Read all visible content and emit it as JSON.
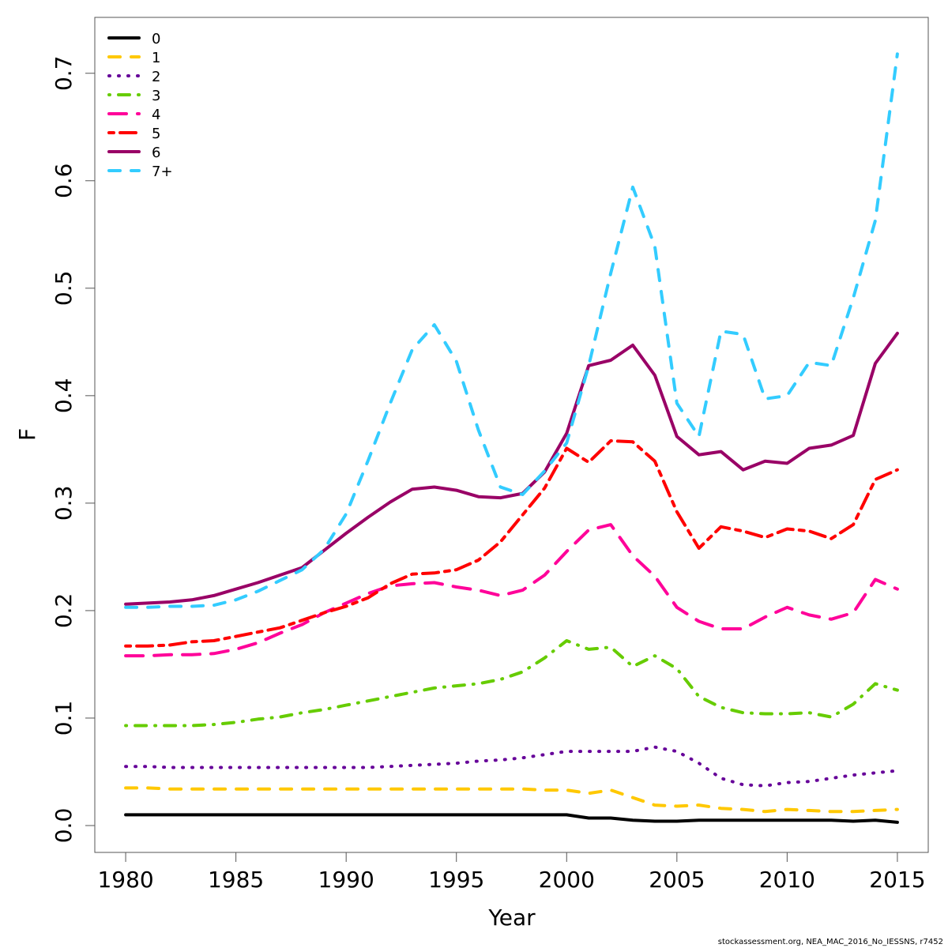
{
  "chart_data": {
    "type": "line",
    "title": "",
    "xlabel": "Year",
    "ylabel": "F",
    "xlim": [
      1978.6,
      2016.4
    ],
    "ylim": [
      -0.025,
      0.752
    ],
    "x_ticks": [
      1980,
      1985,
      1990,
      1995,
      2000,
      2005,
      2010,
      2015
    ],
    "x_tick_labels": [
      "1980",
      "1985",
      "1990",
      "1995",
      "2000",
      "2005",
      "2010",
      "2015"
    ],
    "y_ticks": [
      0.0,
      0.1,
      0.2,
      0.3,
      0.4,
      0.5,
      0.6,
      0.7
    ],
    "y_tick_labels": [
      "0.0",
      "0.1",
      "0.2",
      "0.3",
      "0.4",
      "0.5",
      "0.6",
      "0.7"
    ],
    "grid": false,
    "legend_position": "top-left",
    "x": [
      1980,
      1981,
      1982,
      1983,
      1984,
      1985,
      1986,
      1987,
      1988,
      1989,
      1990,
      1991,
      1992,
      1993,
      1994,
      1995,
      1996,
      1997,
      1998,
      1999,
      2000,
      2001,
      2002,
      2003,
      2004,
      2005,
      2006,
      2007,
      2008,
      2009,
      2010,
      2011,
      2012,
      2013,
      2014,
      2015
    ],
    "series": [
      {
        "name": "0",
        "color": "#000000",
        "dash": "solid",
        "values": [
          0.01,
          0.01,
          0.01,
          0.01,
          0.01,
          0.01,
          0.01,
          0.01,
          0.01,
          0.01,
          0.01,
          0.01,
          0.01,
          0.01,
          0.01,
          0.01,
          0.01,
          0.01,
          0.01,
          0.01,
          0.01,
          0.007,
          0.007,
          0.005,
          0.004,
          0.004,
          0.005,
          0.005,
          0.005,
          0.005,
          0.005,
          0.005,
          0.005,
          0.004,
          0.005,
          0.003
        ]
      },
      {
        "name": "1",
        "color": "#FFC800",
        "dash": "dashed",
        "values": [
          0.035,
          0.035,
          0.034,
          0.034,
          0.034,
          0.034,
          0.034,
          0.034,
          0.034,
          0.034,
          0.034,
          0.034,
          0.034,
          0.034,
          0.034,
          0.034,
          0.034,
          0.034,
          0.034,
          0.033,
          0.033,
          0.03,
          0.033,
          0.026,
          0.019,
          0.018,
          0.019,
          0.016,
          0.015,
          0.013,
          0.015,
          0.014,
          0.013,
          0.013,
          0.014,
          0.015
        ]
      },
      {
        "name": "2",
        "color": "#660099",
        "dash": "dotted",
        "values": [
          0.055,
          0.055,
          0.054,
          0.054,
          0.054,
          0.054,
          0.054,
          0.054,
          0.054,
          0.054,
          0.054,
          0.054,
          0.055,
          0.056,
          0.057,
          0.058,
          0.06,
          0.061,
          0.063,
          0.066,
          0.069,
          0.069,
          0.069,
          0.069,
          0.073,
          0.069,
          0.058,
          0.044,
          0.038,
          0.037,
          0.04,
          0.041,
          0.044,
          0.047,
          0.049,
          0.051
        ]
      },
      {
        "name": "3",
        "color": "#66CC00",
        "dash": "dotdash",
        "values": [
          0.093,
          0.093,
          0.093,
          0.093,
          0.094,
          0.096,
          0.099,
          0.101,
          0.105,
          0.108,
          0.112,
          0.116,
          0.12,
          0.124,
          0.128,
          0.13,
          0.132,
          0.136,
          0.143,
          0.156,
          0.172,
          0.164,
          0.166,
          0.148,
          0.158,
          0.146,
          0.12,
          0.11,
          0.105,
          0.104,
          0.104,
          0.105,
          0.101,
          0.113,
          0.132,
          0.126
        ]
      },
      {
        "name": "4",
        "color": "#FF0099",
        "dash": "longdash",
        "values": [
          0.158,
          0.158,
          0.159,
          0.159,
          0.16,
          0.164,
          0.17,
          0.179,
          0.187,
          0.198,
          0.207,
          0.216,
          0.223,
          0.225,
          0.226,
          0.222,
          0.219,
          0.214,
          0.219,
          0.233,
          0.255,
          0.275,
          0.28,
          0.251,
          0.232,
          0.203,
          0.19,
          0.183,
          0.183,
          0.194,
          0.203,
          0.196,
          0.192,
          0.198,
          0.229,
          0.22
        ]
      },
      {
        "name": "5",
        "color": "#FF0000",
        "dash": "twodash",
        "values": [
          0.167,
          0.167,
          0.168,
          0.171,
          0.172,
          0.176,
          0.18,
          0.184,
          0.191,
          0.198,
          0.204,
          0.212,
          0.225,
          0.234,
          0.235,
          0.238,
          0.247,
          0.264,
          0.289,
          0.314,
          0.351,
          0.338,
          0.358,
          0.357,
          0.339,
          0.292,
          0.258,
          0.278,
          0.274,
          0.268,
          0.276,
          0.274,
          0.267,
          0.28,
          0.322,
          0.331
        ]
      },
      {
        "name": "6",
        "color": "#990066",
        "dash": "solid",
        "values": [
          0.206,
          0.207,
          0.208,
          0.21,
          0.214,
          0.22,
          0.226,
          0.233,
          0.24,
          0.256,
          0.272,
          0.287,
          0.301,
          0.313,
          0.315,
          0.312,
          0.306,
          0.305,
          0.309,
          0.329,
          0.365,
          0.428,
          0.433,
          0.447,
          0.419,
          0.362,
          0.345,
          0.348,
          0.331,
          0.339,
          0.337,
          0.351,
          0.354,
          0.363,
          0.43,
          0.458
        ]
      },
      {
        "name": "7+",
        "color": "#33CCFF",
        "dash": "dashed",
        "values": [
          0.203,
          0.203,
          0.204,
          0.204,
          0.205,
          0.21,
          0.218,
          0.228,
          0.238,
          0.257,
          0.29,
          0.34,
          0.393,
          0.443,
          0.466,
          0.432,
          0.368,
          0.315,
          0.308,
          0.33,
          0.356,
          0.428,
          0.514,
          0.594,
          0.539,
          0.393,
          0.362,
          0.46,
          0.457,
          0.397,
          0.4,
          0.431,
          0.428,
          0.491,
          0.563,
          0.718
        ]
      }
    ]
  },
  "footer": {
    "caption": "stockassessment.org, NEA_MAC_2016_No_IESSNS, r7452"
  }
}
